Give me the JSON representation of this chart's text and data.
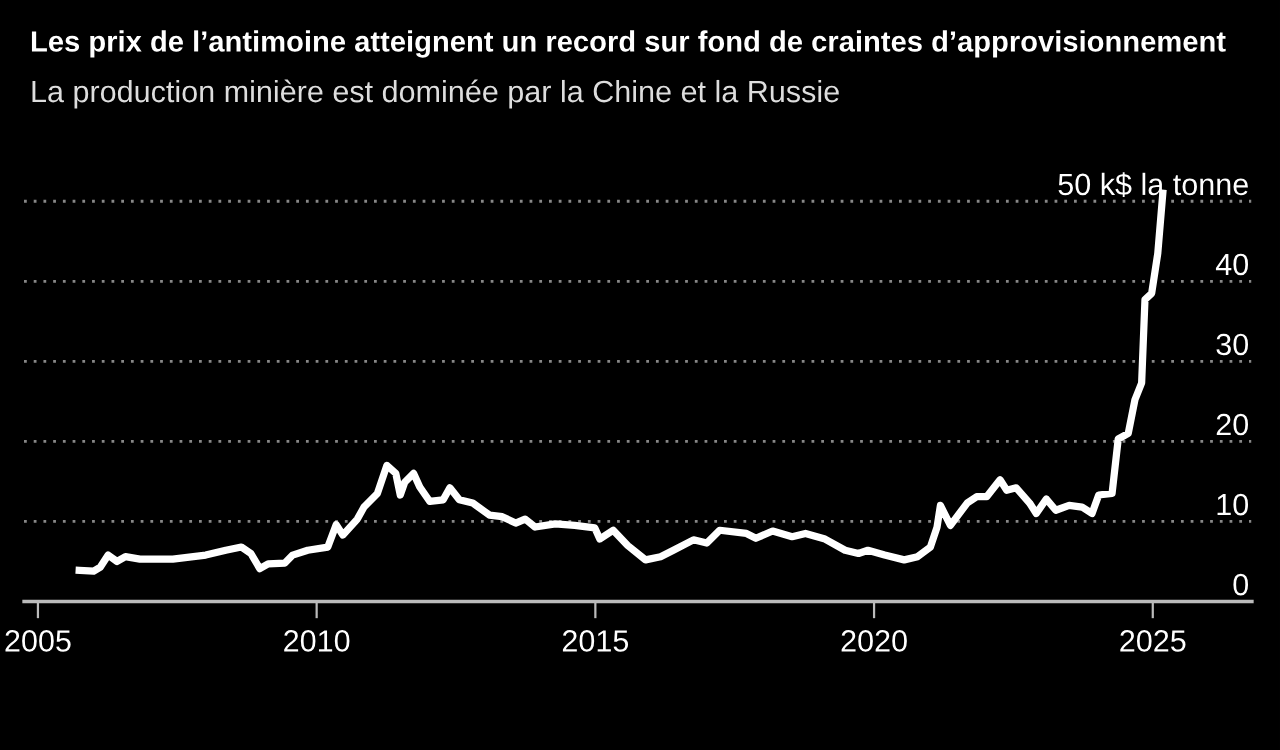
{
  "chart_data": {
    "type": "line",
    "title": "Les prix de l’antimoine atteignent un record sur fond de craintes d’approvisionnement",
    "subtitle": "La production minière est dominée par la Chine et la Russie",
    "x": [
      2005.74,
      2006.0,
      2006.12,
      2006.26,
      2006.42,
      2006.57,
      2006.83,
      2007.42,
      2008.01,
      2008.37,
      2008.65,
      2008.82,
      2008.98,
      2009.13,
      2009.43,
      2009.57,
      2009.84,
      2010.2,
      2010.35,
      2010.47,
      2010.73,
      2010.85,
      2011.09,
      2011.26,
      2011.42,
      2011.5,
      2011.58,
      2011.74,
      2011.85,
      2012.03,
      2012.27,
      2012.39,
      2012.56,
      2012.8,
      2013.1,
      2013.33,
      2013.57,
      2013.74,
      2013.92,
      2014.28,
      2014.63,
      2014.99,
      2015.08,
      2015.32,
      2015.58,
      2015.9,
      2016.17,
      2016.4,
      2016.76,
      2017.0,
      2017.23,
      2017.71,
      2017.88,
      2018.18,
      2018.53,
      2018.77,
      2019.12,
      2019.48,
      2019.72,
      2019.89,
      2020.19,
      2020.54,
      2020.78,
      2021.01,
      2021.13,
      2021.19,
      2021.37,
      2021.67,
      2021.84,
      2022.02,
      2022.26,
      2022.38,
      2022.55,
      2022.79,
      2022.91,
      2023.09,
      2023.26,
      2023.5,
      2023.73,
      2023.91,
      2024.03,
      2024.27,
      2024.38,
      2024.56,
      2024.68,
      2024.8,
      2024.86,
      2024.98,
      2025.09,
      2025.18
    ],
    "series": [
      {
        "color": "#ffffff",
        "values": [
          3.9,
          3.8,
          4.3,
          5.8,
          5.0,
          5.6,
          5.3,
          5.3,
          5.8,
          6.4,
          6.8,
          6.0,
          4.1,
          4.7,
          4.8,
          5.8,
          6.4,
          6.8,
          9.6,
          8.3,
          10.3,
          11.8,
          13.5,
          17.0,
          16.0,
          13.3,
          14.9,
          16.0,
          14.3,
          12.5,
          12.7,
          14.2,
          12.7,
          12.3,
          10.8,
          10.6,
          9.8,
          10.3,
          9.3,
          9.7,
          9.5,
          9.2,
          7.8,
          8.9,
          7.0,
          5.2,
          5.6,
          6.4,
          7.7,
          7.3,
          8.9,
          8.5,
          7.9,
          8.8,
          8.1,
          8.5,
          7.8,
          6.4,
          6.0,
          6.4,
          5.8,
          5.2,
          5.6,
          6.8,
          9.3,
          12.0,
          9.5,
          12.3,
          13.1,
          13.1,
          15.2,
          13.9,
          14.2,
          12.3,
          11.0,
          12.8,
          11.4,
          12.0,
          11.8,
          11.0,
          13.3,
          13.5,
          20.3,
          21.0,
          25.2,
          27.3,
          37.7,
          38.5,
          43.5,
          51.0
        ]
      }
    ],
    "xlim": [
      2004.75,
      2026.78
    ],
    "xticks": [
      2005,
      2010,
      2015,
      2020,
      2025
    ],
    "ylim": [
      0,
      52
    ],
    "yticks": [
      0,
      10,
      20,
      30,
      40,
      {
        "value": 50,
        "label": "50 k$ la tonne"
      }
    ],
    "grid": "y"
  }
}
